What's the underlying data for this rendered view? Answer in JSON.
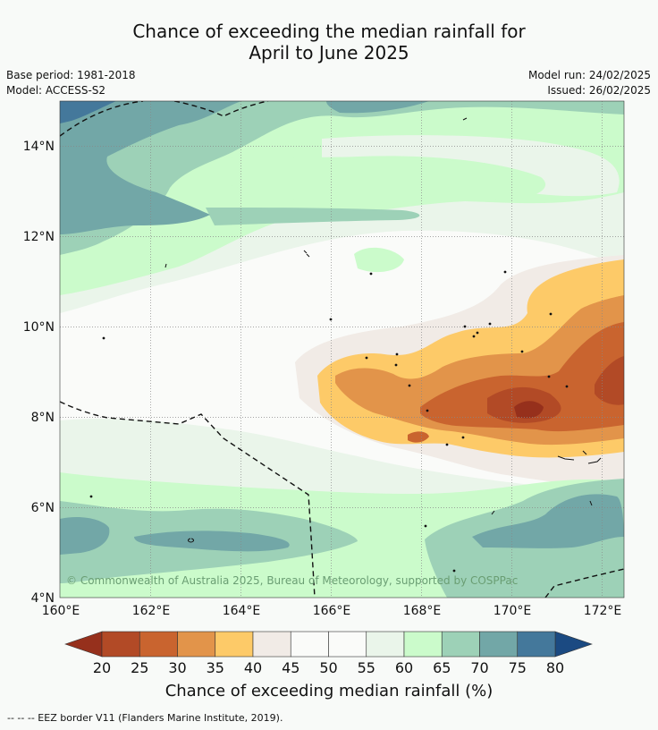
{
  "title_line1": "Chance of exceeding the median rainfall for",
  "title_line2": "April to June 2025",
  "base_period": "Base period: 1981-2018",
  "model": "Model: ACCESS-S2",
  "model_run": "Model run: 24/02/2025",
  "issued": "Issued: 26/02/2025",
  "copyright": "© Commonwealth of Australia 2025, Bureau of Meteorology, supported by COSPPac",
  "footer": "-- -- -- EEZ border V11 (Flanders Marine Institute, 2019).",
  "map": {
    "lon_ticks": [
      "160°E",
      "162°E",
      "164°E",
      "166°E",
      "168°E",
      "170°E",
      "172°E"
    ],
    "lat_ticks": [
      "14°N",
      "12°N",
      "10°N",
      "8°N",
      "6°N",
      "4°N"
    ]
  },
  "colorbar": {
    "title": "Chance of exceeding median rainfall (%)",
    "labels": [
      "20",
      "25",
      "30",
      "35",
      "40",
      "45",
      "50",
      "55",
      "60",
      "65",
      "70",
      "75",
      "80"
    ],
    "colors": [
      "#b24a26",
      "#c9642f",
      "#e2944a",
      "#fdca68",
      "#f1ebe6",
      "#fafbf9",
      "#fafbf9",
      "#eaf5ea",
      "#cbfbcb",
      "#9dd1b7",
      "#72a7a7",
      "#44789b"
    ],
    "low_color": "#96301c",
    "high_color": "#1b4a82"
  }
}
